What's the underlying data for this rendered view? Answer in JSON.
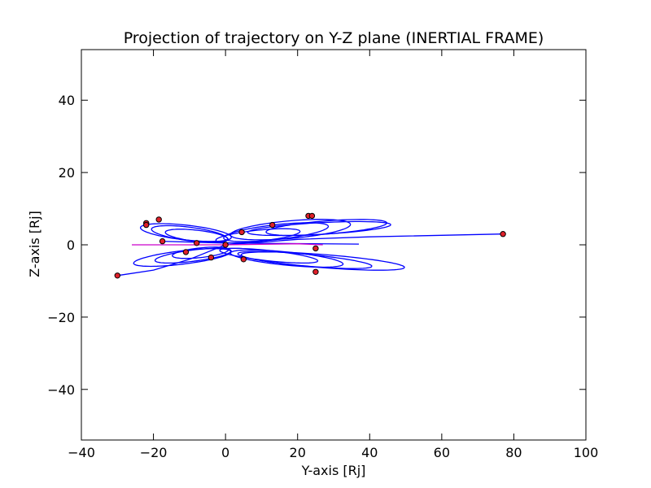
{
  "chart_data": {
    "type": "line",
    "title": "Projection of trajectory on Y-Z plane (INERTIAL FRAME)",
    "xlabel": "Y-axis [Rj]",
    "ylabel": "Z-axis [Rj]",
    "xlim": [
      -40,
      100
    ],
    "ylim": [
      -54,
      54
    ],
    "x_ticks": [
      -40,
      -20,
      0,
      20,
      40,
      60,
      80,
      100
    ],
    "x_tick_labels": [
      "−40",
      "−20",
      "0",
      "20",
      "40",
      "60",
      "80",
      "100"
    ],
    "y_ticks": [
      -40,
      -20,
      0,
      20,
      40
    ],
    "y_tick_labels": [
      "−40",
      "−20",
      "0",
      "20",
      "40"
    ],
    "grid": false,
    "legend": "none",
    "colors": {
      "trajectory": "#0000ff",
      "secondary_line": "#cc00cc",
      "marker_fill": "#e0202a",
      "marker_edge": "#000000",
      "axes": "#000000",
      "background": "#ffffff"
    },
    "series": [
      {
        "style": "ellipse-loops",
        "loops": [
          {
            "cy": 26,
            "cz": 4.5,
            "ry": 20,
            "rz": 1.6,
            "angle_deg": 7
          },
          {
            "cy": 28,
            "cz": 4.8,
            "ry": 17,
            "rz": 1.8,
            "angle_deg": 10
          },
          {
            "cy": 18,
            "cz": 4.2,
            "ry": 17,
            "rz": 2.4,
            "angle_deg": 12
          },
          {
            "cy": 14,
            "cz": 3.5,
            "ry": 15,
            "rz": 2.0,
            "angle_deg": 15
          },
          {
            "cy": 9,
            "cz": 2.5,
            "ry": 12,
            "rz": 1.5,
            "angle_deg": 14
          },
          {
            "cy": 27,
            "cz": -4.5,
            "ry": 23,
            "rz": 1.8,
            "angle_deg": -10
          },
          {
            "cy": 22,
            "cz": -4.2,
            "ry": 19,
            "rz": 1.6,
            "angle_deg": -12
          },
          {
            "cy": 17,
            "cz": -3.8,
            "ry": 16,
            "rz": 1.8,
            "angle_deg": -13
          },
          {
            "cy": 12,
            "cz": -3.0,
            "ry": 14,
            "rz": 1.4,
            "angle_deg": -14
          },
          {
            "cy": -11,
            "cz": 3.4,
            "ry": 13,
            "rz": 2.0,
            "angle_deg": -15
          },
          {
            "cy": -10,
            "cz": 3.0,
            "ry": 11,
            "rz": 1.8,
            "angle_deg": -18
          },
          {
            "cy": -8,
            "cz": 2.5,
            "ry": 9,
            "rz": 1.5,
            "angle_deg": -16
          },
          {
            "cy": -12,
            "cz": -3.5,
            "ry": 14,
            "rz": 1.8,
            "angle_deg": 16
          },
          {
            "cy": -9,
            "cz": -3.0,
            "ry": 11,
            "rz": 1.5,
            "angle_deg": 17
          },
          {
            "cy": -7,
            "cz": -2.2,
            "ry": 8,
            "rz": 1.3,
            "angle_deg": 15
          }
        ]
      },
      {
        "style": "polyline",
        "color_key": "trajectory",
        "points": [
          [
            -30,
            -8.5
          ],
          [
            -20,
            -7
          ],
          [
            -10,
            -4
          ],
          [
            0,
            0
          ],
          [
            20,
            1.5
          ],
          [
            40,
            2.2
          ],
          [
            77,
            3
          ]
        ]
      },
      {
        "style": "polyline",
        "color_key": "trajectory",
        "points": [
          [
            -18,
            1
          ],
          [
            0,
            0.5
          ],
          [
            37,
            0.2
          ]
        ]
      },
      {
        "style": "polyline",
        "color_key": "secondary_line",
        "points": [
          [
            -26,
            0
          ],
          [
            0,
            0
          ],
          [
            20,
            0.3
          ],
          [
            27,
            0
          ]
        ]
      },
      {
        "style": "markers",
        "points": [
          [
            77,
            3
          ],
          [
            -30,
            -8.5
          ],
          [
            23,
            8
          ],
          [
            24,
            8
          ],
          [
            -22,
            6
          ],
          [
            -18.5,
            7
          ],
          [
            -17.5,
            1
          ],
          [
            -8,
            0.5
          ],
          [
            0,
            0
          ],
          [
            4.5,
            3.5
          ],
          [
            5,
            -4
          ],
          [
            25,
            -1
          ],
          [
            25,
            -7.5
          ],
          [
            -4,
            -3.5
          ],
          [
            -11,
            -2
          ],
          [
            13,
            5.5
          ],
          [
            -22,
            5.5
          ]
        ]
      }
    ]
  }
}
